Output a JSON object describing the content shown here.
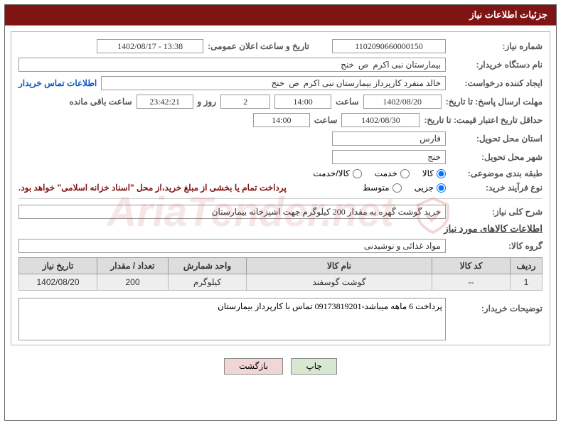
{
  "title_bar": "جزئیات اطلاعات نیاز",
  "watermark_text": "AriaTender.net",
  "fields": {
    "need_number_lbl": "شماره نیاز:",
    "need_number": "1102090660000150",
    "announce_datetime_lbl": "تاریخ و ساعت اعلان عمومی:",
    "announce_datetime": "1402/08/17 - 13:38",
    "buyer_org_lbl": "نام دستگاه خریدار:",
    "buyer_org": "بیمارستان نبی اکرم  ص  خنج",
    "requester_lbl": "ایجاد کننده درخواست:",
    "requester": "خالد منفرد کارپرداز بیمارستان نبی اکرم  ص  خنج",
    "contact_link": "اطلاعات تماس خریدار",
    "reply_deadline_lbl": "مهلت ارسال پاسخ: تا تاریخ:",
    "reply_deadline_date": "1402/08/20",
    "time_lbl": "ساعت",
    "reply_deadline_time": "14:00",
    "days_remaining": "2",
    "days_and_lbl": "روز و",
    "countdown": "23:42:21",
    "remaining_lbl": "ساعت باقی مانده",
    "validity_lbl": "حداقل تاریخ اعتبار قیمت: تا تاریخ:",
    "validity_date": "1402/08/30",
    "validity_time": "14:00",
    "delivery_province_lbl": "استان محل تحویل:",
    "delivery_province": "فارس",
    "delivery_city_lbl": "شهر محل تحویل:",
    "delivery_city": "خنج",
    "subject_type_lbl": "طبقه بندی موضوعی:",
    "subject_goods": "کالا",
    "subject_service": "خدمت",
    "subject_goods_service": "کالا/خدمت",
    "process_type_lbl": "نوع فرآیند خرید:",
    "process_minor": "جزیی",
    "process_medium": "متوسط",
    "payment_note": "پرداخت تمام یا بخشی از مبلغ خرید،از محل \"اسناد خزانه اسلامی\" خواهد بود.",
    "need_summary_lbl": "شرح کلی نیاز:",
    "need_summary": "خرید گوشت گهره به مقدار 200 کیلوگرم جهت اشپزخانه بیمارستان",
    "items_info_header": "اطلاعات کالاهای مورد نیاز",
    "goods_group_lbl": "گروه کالا:",
    "goods_group": "مواد غذائی و نوشیدنی",
    "buyer_desc_lbl": "توضیحات خریدار:",
    "buyer_desc": "پرداخت 6 ماهه میباشد-09173819201 تماس با کارپرداز بیمارستان"
  },
  "table": {
    "headers": {
      "row": "ردیف",
      "code": "کد کالا",
      "name": "نام کالا",
      "unit": "واحد شمارش",
      "qty": "تعداد / مقدار",
      "date": "تاریخ نیاز"
    },
    "rows": [
      {
        "row": "1",
        "code": "--",
        "name": "گوشت گوسفند",
        "unit": "کیلوگرم",
        "qty": "200",
        "date": "1402/08/20"
      }
    ]
  },
  "buttons": {
    "print": "چاپ",
    "back": "بازگشت"
  },
  "colors": {
    "title_bg": "#7f1414",
    "border": "#999999",
    "th_bg": "#dddddd",
    "td_bg": "#eeeeee",
    "link": "#0a58ca",
    "note": "#7f1414"
  }
}
